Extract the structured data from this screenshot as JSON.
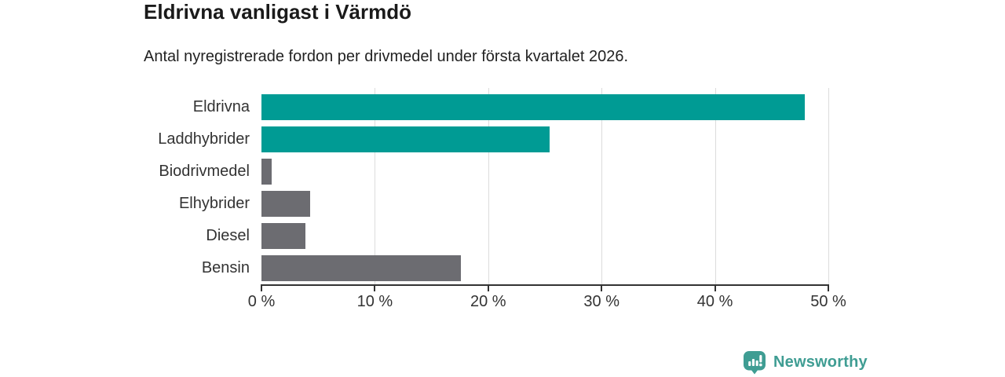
{
  "header": {
    "title": "Eldrivna vanligast i Värmdö",
    "subtitle": "Antal nyregistrerade fordon per drivmedel under första kvartalet 2026."
  },
  "chart_data": {
    "type": "bar",
    "orientation": "horizontal",
    "title": "Eldrivna vanligast i Värmdö",
    "subtitle": "Antal nyregistrerade fordon per drivmedel under första kvartalet 2026.",
    "categories": [
      "Eldrivna",
      "Laddhybrider",
      "Biodrivmedel",
      "Elhybrider",
      "Diesel",
      "Bensin"
    ],
    "values": [
      47.9,
      25.4,
      0.9,
      4.3,
      3.9,
      17.6
    ],
    "unit": "%",
    "xlim": [
      0,
      50
    ],
    "x_ticks": [
      0,
      10,
      20,
      30,
      40,
      50
    ],
    "x_tick_labels": [
      "0 %",
      "10 %",
      "20 %",
      "30 %",
      "40 %",
      "50 %"
    ],
    "bar_colors": [
      "#009b94",
      "#009b94",
      "#6c6c71",
      "#6c6c71",
      "#6c6c71",
      "#6c6c71"
    ],
    "highlight_color": "#009b94",
    "default_color": "#6c6c71",
    "gridlines": true,
    "gridline_color": "#dcdcdc",
    "axis_color": "#333333",
    "legend": "none"
  },
  "footer": {
    "brand": "Newsworthy",
    "brand_color": "#3f9d93"
  }
}
